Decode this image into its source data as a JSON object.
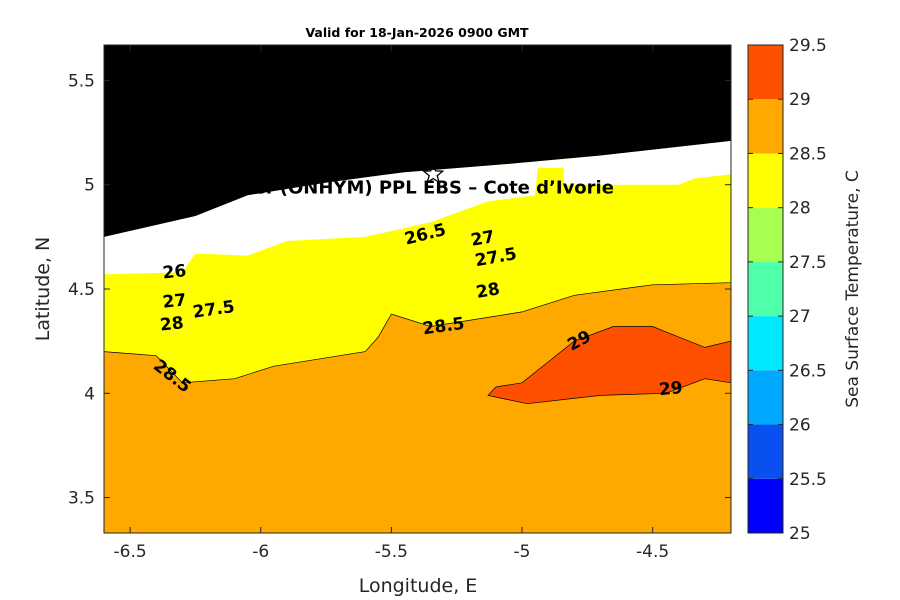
{
  "chart_data": {
    "type": "heatmap",
    "title": "Valid for 18-Jan-2026 0900 GMT",
    "xlabel": "Longitude, E",
    "ylabel": "Latitude, N",
    "xlim": [
      -6.6,
      -4.2
    ],
    "ylim": [
      3.33,
      5.67
    ],
    "xticks": [
      -6.5,
      -6,
      -5.5,
      -5,
      -4.5
    ],
    "yticks": [
      3.5,
      4,
      4.5,
      5,
      5.5
    ],
    "colorbar": {
      "label": "Sea Surface Temperature, C",
      "range": [
        25,
        29.5
      ],
      "levels": [
        25,
        25.5,
        26,
        26.5,
        27,
        27.5,
        28,
        28.5,
        29,
        29.5
      ],
      "colors": [
        "#0000ff",
        "#0a50f0",
        "#00a8ff",
        "#00e8ff",
        "#50ffaa",
        "#a8ff50",
        "#ffff00",
        "#ffa800",
        "#ff5000"
      ]
    },
    "land_color": "#000000",
    "nodata_color": "#ffffff",
    "site": {
      "name": "CI-(ONHYM) PPL EBS  – Cote d’Ivorie",
      "lon": -5.34,
      "lat": 5.05
    },
    "contours": [
      {
        "level": 26,
        "band": "#0a50f0",
        "points": [
          [
            -6.6,
            4.57
          ],
          [
            -6.3,
            4.58
          ],
          [
            -6.25,
            4.67
          ],
          [
            -6.05,
            4.66
          ],
          [
            -5.9,
            4.73
          ],
          [
            -5.6,
            4.75
          ],
          [
            -5.35,
            4.82
          ],
          [
            -5.13,
            4.92
          ],
          [
            -4.95,
            4.95
          ],
          [
            -4.94,
            5.08
          ],
          [
            -4.84,
            5.08
          ],
          [
            -4.84,
            5.05
          ],
          [
            -4.84,
            6.0
          ],
          [
            -6.6,
            6.0
          ]
        ]
      },
      {
        "level": 26.5,
        "band": "#00a8ff",
        "points": [
          [
            -6.6,
            4.53
          ],
          [
            -6.4,
            4.55
          ],
          [
            -6.1,
            4.62
          ],
          [
            -5.85,
            4.68
          ],
          [
            -5.6,
            4.72
          ],
          [
            -5.4,
            4.8
          ],
          [
            -5.2,
            4.88
          ],
          [
            -5.0,
            4.93
          ],
          [
            -4.84,
            4.98
          ],
          [
            -4.84,
            6.0
          ],
          [
            -6.6,
            6.0
          ]
        ]
      },
      {
        "level": 27,
        "band": "#00e8ff",
        "points": [
          [
            -6.6,
            4.47
          ],
          [
            -6.35,
            4.5
          ],
          [
            -6.0,
            4.55
          ],
          [
            -5.7,
            4.6
          ],
          [
            -5.45,
            4.72
          ],
          [
            -5.2,
            4.78
          ],
          [
            -4.9,
            4.84
          ],
          [
            -4.6,
            4.9
          ],
          [
            -4.3,
            4.95
          ],
          [
            -4.2,
            5.0
          ],
          [
            -4.2,
            6.0
          ],
          [
            -6.6,
            6.0
          ]
        ]
      },
      {
        "level": 27.5,
        "band": "#50ffaa",
        "points": [
          [
            -6.6,
            4.41
          ],
          [
            -6.3,
            4.44
          ],
          [
            -5.95,
            4.5
          ],
          [
            -5.7,
            4.55
          ],
          [
            -5.45,
            4.63
          ],
          [
            -5.2,
            4.72
          ],
          [
            -4.9,
            4.78
          ],
          [
            -4.6,
            4.82
          ],
          [
            -4.2,
            4.88
          ],
          [
            -4.2,
            6.0
          ],
          [
            -6.6,
            6.0
          ]
        ]
      },
      {
        "level": 28,
        "band": "#a8ff50",
        "points": [
          [
            -6.6,
            4.36
          ],
          [
            -6.3,
            4.37
          ],
          [
            -6.0,
            4.38
          ],
          [
            -5.7,
            4.44
          ],
          [
            -5.5,
            4.5
          ],
          [
            -5.2,
            4.56
          ],
          [
            -4.9,
            4.66
          ],
          [
            -4.6,
            4.7
          ],
          [
            -4.2,
            4.74
          ],
          [
            -4.2,
            6.0
          ],
          [
            -6.6,
            6.0
          ]
        ]
      },
      {
        "level": 28.5,
        "band": "#ffff00",
        "points": [
          [
            -6.6,
            4.2
          ],
          [
            -6.4,
            4.18
          ],
          [
            -6.3,
            4.05
          ],
          [
            -6.1,
            4.07
          ],
          [
            -5.95,
            4.13
          ],
          [
            -5.6,
            4.2
          ],
          [
            -5.55,
            4.27
          ],
          [
            -5.5,
            4.38
          ],
          [
            -5.35,
            4.32
          ],
          [
            -5.0,
            4.39
          ],
          [
            -4.8,
            4.47
          ],
          [
            -4.5,
            4.52
          ],
          [
            -4.2,
            4.53
          ],
          [
            -4.2,
            6.0
          ],
          [
            -6.6,
            6.0
          ]
        ]
      },
      {
        "level": 29,
        "band": "#ff5000",
        "points": [
          [
            -5.13,
            3.99
          ],
          [
            -4.98,
            3.95
          ],
          [
            -4.7,
            3.99
          ],
          [
            -4.45,
            4.0
          ],
          [
            -4.3,
            4.07
          ],
          [
            -4.2,
            4.05
          ],
          [
            -4.2,
            4.25
          ],
          [
            -4.3,
            4.22
          ],
          [
            -4.42,
            4.28
          ],
          [
            -4.5,
            4.32
          ],
          [
            -4.65,
            4.32
          ],
          [
            -4.8,
            4.25
          ],
          [
            -4.9,
            4.15
          ],
          [
            -5.0,
            4.05
          ],
          [
            -5.1,
            4.03
          ]
        ]
      }
    ],
    "nodata_region": [
      [
        -6.6,
        4.75
      ],
      [
        -6.25,
        4.85
      ],
      [
        -6.05,
        4.95
      ],
      [
        -5.75,
        5.01
      ],
      [
        -5.45,
        5.06
      ],
      [
        -5.05,
        5.1
      ],
      [
        -4.7,
        5.14
      ],
      [
        -4.2,
        5.21
      ],
      [
        -4.2,
        5.05
      ],
      [
        -4.34,
        5.03
      ],
      [
        -4.4,
        5.0
      ],
      [
        -4.84,
        5.0
      ],
      [
        -4.84,
        5.08
      ],
      [
        -4.94,
        5.08
      ],
      [
        -4.95,
        4.95
      ],
      [
        -5.13,
        4.92
      ],
      [
        -5.35,
        4.82
      ],
      [
        -5.6,
        4.75
      ],
      [
        -5.9,
        4.73
      ],
      [
        -6.05,
        4.66
      ],
      [
        -6.25,
        4.67
      ],
      [
        -6.3,
        4.58
      ],
      [
        -6.6,
        4.57
      ]
    ],
    "land_region": [
      [
        -6.6,
        4.75
      ],
      [
        -6.25,
        4.85
      ],
      [
        -6.05,
        4.95
      ],
      [
        -5.75,
        5.01
      ],
      [
        -5.45,
        5.06
      ],
      [
        -5.05,
        5.1
      ],
      [
        -4.7,
        5.14
      ],
      [
        -4.2,
        5.21
      ],
      [
        -4.2,
        5.67
      ],
      [
        -6.6,
        5.67
      ]
    ],
    "contour_labels": [
      {
        "text": "26",
        "lon": -6.33,
        "lat": 4.58,
        "angle": -6
      },
      {
        "text": "27",
        "lon": -6.33,
        "lat": 4.44,
        "angle": -6
      },
      {
        "text": "27.5",
        "lon": -6.18,
        "lat": 4.4,
        "angle": -8
      },
      {
        "text": "28",
        "lon": -6.34,
        "lat": 4.33,
        "angle": -6
      },
      {
        "text": "28.5",
        "lon": -6.34,
        "lat": 4.08,
        "angle": 38
      },
      {
        "text": "26.5",
        "lon": -5.37,
        "lat": 4.76,
        "angle": -14
      },
      {
        "text": "27",
        "lon": -5.15,
        "lat": 4.74,
        "angle": -10
      },
      {
        "text": "27.5",
        "lon": -5.1,
        "lat": 4.65,
        "angle": -10
      },
      {
        "text": "28",
        "lon": -5.13,
        "lat": 4.49,
        "angle": -10
      },
      {
        "text": "28.5",
        "lon": -5.3,
        "lat": 4.32,
        "angle": -8
      },
      {
        "text": "29",
        "lon": -4.78,
        "lat": 4.25,
        "angle": -28
      },
      {
        "text": "29",
        "lon": -4.43,
        "lat": 4.02,
        "angle": -6
      }
    ]
  }
}
